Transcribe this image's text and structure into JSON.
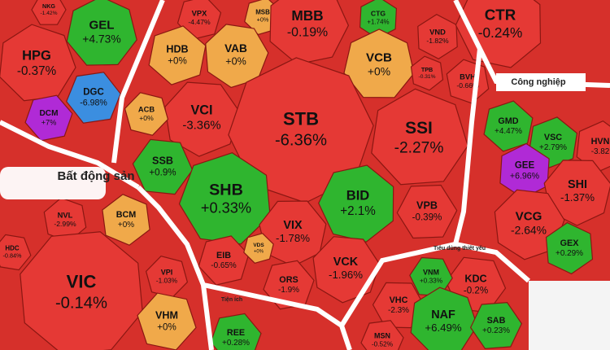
{
  "cells": [
    {
      "ticker": "NKG",
      "change": "-1.42%",
      "color": "#e53935"
    },
    {
      "ticker": "HPG",
      "change": "-0.37%",
      "color": "#e53935"
    },
    {
      "ticker": "GEL",
      "change": "+4.73%",
      "color": "#2fb52f"
    },
    {
      "ticker": "DGC",
      "change": "-6.98%",
      "color": "#3b8ee0"
    },
    {
      "ticker": "DCM",
      "change": "+7%",
      "color": "#b02ad6"
    },
    {
      "ticker": "VPX",
      "change": "-4.47%",
      "color": "#e53935"
    },
    {
      "ticker": "MSB",
      "change": "+0%",
      "color": "#f0a94a"
    },
    {
      "ticker": "HDB",
      "change": "+0%",
      "color": "#f0a94a"
    },
    {
      "ticker": "VAB",
      "change": "+0%",
      "color": "#f0a94a"
    },
    {
      "ticker": "MBB",
      "change": "-0.19%",
      "color": "#e53935"
    },
    {
      "ticker": "CTG",
      "change": "+1.74%",
      "color": "#2fb52f"
    },
    {
      "ticker": "VCB",
      "change": "+0%",
      "color": "#f0a94a"
    },
    {
      "ticker": "VND",
      "change": "-1.82%",
      "color": "#e53935"
    },
    {
      "ticker": "CTR",
      "change": "-0.24%",
      "color": "#e53935"
    },
    {
      "ticker": "TPB",
      "change": "-0.31%",
      "color": "#e53935"
    },
    {
      "ticker": "BVH",
      "change": "-0.66%",
      "color": "#e53935"
    },
    {
      "ticker": "VCI",
      "change": "-3.36%",
      "color": "#e53935"
    },
    {
      "ticker": "ACB",
      "change": "+0%",
      "color": "#f0a94a"
    },
    {
      "ticker": "STB",
      "change": "-6.36%",
      "color": "#e53935"
    },
    {
      "ticker": "SSI",
      "change": "-2.27%",
      "color": "#e53935"
    },
    {
      "ticker": "SSB",
      "change": "+0.9%",
      "color": "#2fb52f"
    },
    {
      "ticker": "SHB",
      "change": "+0.33%",
      "color": "#2fb52f"
    },
    {
      "ticker": "BID",
      "change": "+2.1%",
      "color": "#2fb52f"
    },
    {
      "ticker": "VPB",
      "change": "-0.39%",
      "color": "#e53935"
    },
    {
      "ticker": "VIX",
      "change": "-1.78%",
      "color": "#e53935"
    },
    {
      "ticker": "VCK",
      "change": "-1.96%",
      "color": "#e53935"
    },
    {
      "ticker": "ORS",
      "change": "-1.9%",
      "color": "#e53935"
    },
    {
      "ticker": "EIB",
      "change": "-0.65%",
      "color": "#e53935"
    },
    {
      "ticker": "VDS",
      "change": "+0%",
      "color": "#f0a94a"
    },
    {
      "ticker": "GMD",
      "change": "+4.47%",
      "color": "#2fb52f"
    },
    {
      "ticker": "VSC",
      "change": "+2.79%",
      "color": "#2fb52f"
    },
    {
      "ticker": "HVN",
      "change": "-3.82",
      "color": "#e53935"
    },
    {
      "ticker": "GEE",
      "change": "+6.96%",
      "color": "#b02ad6"
    },
    {
      "ticker": "SHI",
      "change": "-1.37%",
      "color": "#e53935"
    },
    {
      "ticker": "VCG",
      "change": "-2.64%",
      "color": "#e53935"
    },
    {
      "ticker": "GEX",
      "change": "+0.29%",
      "color": "#2fb52f"
    },
    {
      "ticker": "BCM",
      "change": "+0%",
      "color": "#f0a94a"
    },
    {
      "ticker": "NVL",
      "change": "-2.99%",
      "color": "#e53935"
    },
    {
      "ticker": "VIC",
      "change": "-0.14%",
      "color": "#e53935"
    },
    {
      "ticker": "VPI",
      "change": "-1.03%",
      "color": "#e53935"
    },
    {
      "ticker": "VHM",
      "change": "+0%",
      "color": "#f0a94a"
    },
    {
      "ticker": "HDC",
      "change": "-0.84%",
      "color": "#e53935"
    },
    {
      "ticker": "KDC",
      "change": "-0.2%",
      "color": "#e53935"
    },
    {
      "ticker": "VNM",
      "change": "+0.33%",
      "color": "#2fb52f"
    },
    {
      "ticker": "VHC",
      "change": "-2.3%",
      "color": "#e53935"
    },
    {
      "ticker": "NAF",
      "change": "+6.49%",
      "color": "#2fb52f"
    },
    {
      "ticker": "SAB",
      "change": "+0.23%",
      "color": "#2fb52f"
    },
    {
      "ticker": "MSN",
      "change": "-0.52%",
      "color": "#e53935"
    },
    {
      "ticker": "REE",
      "change": "+0.28%",
      "color": "#2fb52f"
    }
  ],
  "sectors": [
    "Bất động sản",
    "Công nghiệp",
    "Tiêu dùng thiết yếu",
    "Tiện ích"
  ]
}
